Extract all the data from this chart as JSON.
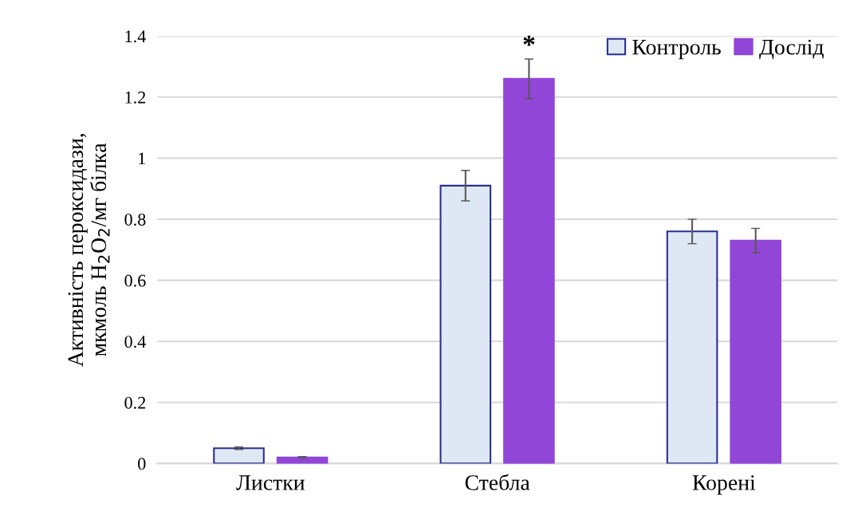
{
  "chart_data": {
    "type": "bar",
    "ylabel": "Активність пероксидази,\nмкмоль H$_{2}$O$_{2}$/мг білка",
    "categories": [
      "Листки",
      "Стебла",
      "Корені"
    ],
    "series": [
      {
        "name": "Контроль",
        "color": "#dee8f4",
        "values": [
          0.05,
          0.91,
          0.76
        ],
        "errors": [
          0.004,
          0.05,
          0.04
        ]
      },
      {
        "name": "Дослід",
        "color": "#9146d8",
        "values": [
          0.02,
          1.26,
          0.73
        ],
        "errors": [
          0.003,
          0.065,
          0.04
        ]
      }
    ],
    "annotations": [
      "*"
    ],
    "ylim": [
      0,
      1.4
    ],
    "yticks": [
      0,
      0.2,
      0.4,
      0.6,
      0.8,
      1,
      1.2,
      1.4
    ],
    "grid": "y",
    "legend": "top right"
  }
}
